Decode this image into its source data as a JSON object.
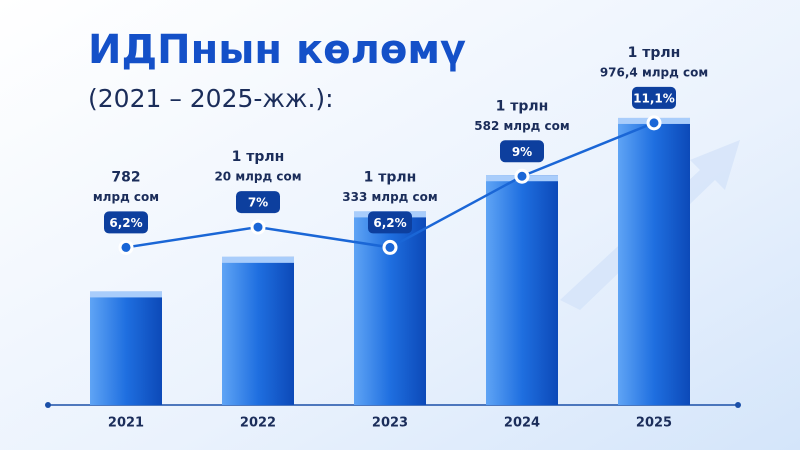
{
  "chart_data": {
    "type": "bar",
    "title": "ИДПнын көлөмү",
    "subtitle": "(2021 – 2025-жж.):",
    "categories": [
      "2021",
      "2022",
      "2023",
      "2024",
      "2025"
    ],
    "ylim": [
      0,
      2100
    ],
    "y2lim": [
      0,
      12
    ],
    "series": [
      {
        "type": "bar",
        "color": "#1f6fe0",
        "values": [
          782,
          1020,
          1333,
          1582,
          1976.4
        ],
        "value_labels": [
          [
            "782",
            "млрд сом"
          ],
          [
            "1 трлн",
            "20 млрд сом"
          ],
          [
            "1 трлн",
            "333 млрд сом"
          ],
          [
            "1 трлн",
            "582 млрд сом"
          ],
          [
            "1 трлн",
            "976,4 млрд сом"
          ]
        ]
      },
      {
        "type": "line",
        "axis": "y2",
        "color": "#1a66d6",
        "values": [
          6.2,
          7,
          6.2,
          9,
          11.1
        ],
        "value_labels": [
          "6,2%",
          "7%",
          "6,2%",
          "9%",
          "11,1%"
        ]
      }
    ]
  }
}
